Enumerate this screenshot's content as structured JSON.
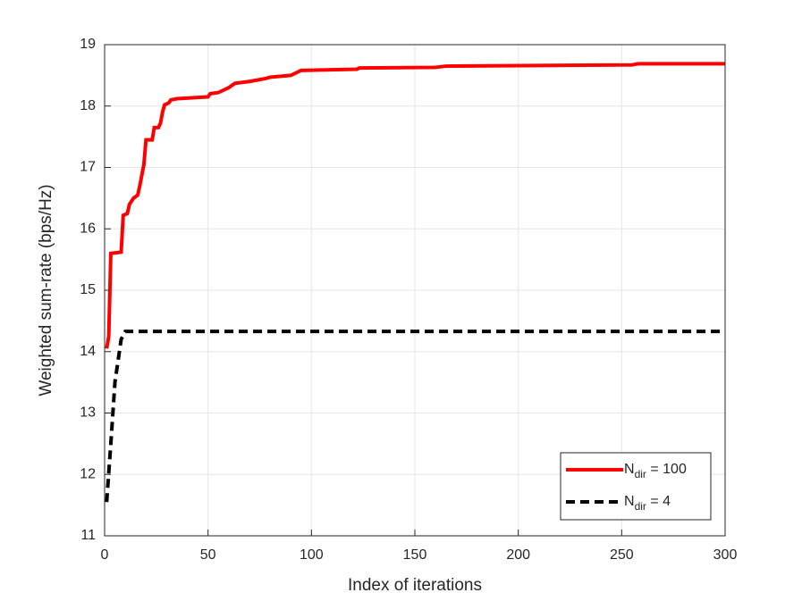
{
  "chart_data": {
    "type": "line",
    "xlabel": "Index of iterations",
    "ylabel": "Weighted sum-rate  (bps/Hz)",
    "xlim": [
      0,
      300
    ],
    "xticks": [
      0,
      50,
      100,
      150,
      200,
      250,
      300
    ],
    "ylim": [
      11,
      19
    ],
    "yticks": [
      11,
      12,
      13,
      14,
      15,
      16,
      17,
      18,
      19
    ],
    "grid": true,
    "legend": "lower right",
    "series": [
      {
        "name": "N_{dir} = 100",
        "color": "#ff0000",
        "dash": "solid",
        "x": [
          1,
          2,
          3,
          8,
          9,
          11,
          12,
          14,
          16,
          17,
          19,
          20,
          23,
          24,
          26,
          27,
          28,
          29,
          31,
          32,
          35,
          50,
          51,
          55,
          60,
          63,
          70,
          78,
          80,
          90,
          95,
          122,
          123,
          160,
          165,
          255,
          258,
          300
        ],
        "values": [
          14.05,
          14.25,
          15.6,
          15.62,
          16.22,
          16.25,
          16.4,
          16.5,
          16.55,
          16.7,
          17.05,
          17.45,
          17.45,
          17.65,
          17.65,
          17.72,
          17.9,
          18.02,
          18.05,
          18.1,
          18.12,
          18.15,
          18.2,
          18.22,
          18.3,
          18.37,
          18.4,
          18.45,
          18.47,
          18.5,
          18.58,
          18.6,
          18.62,
          18.63,
          18.65,
          18.67,
          18.69,
          18.69
        ]
      },
      {
        "name": "N_{dir} = 4",
        "color": "#000000",
        "dash": "dashed",
        "x": [
          1,
          3,
          5,
          8,
          10,
          300
        ],
        "values": [
          11.55,
          12.5,
          13.5,
          14.2,
          14.33,
          14.33
        ]
      }
    ]
  }
}
